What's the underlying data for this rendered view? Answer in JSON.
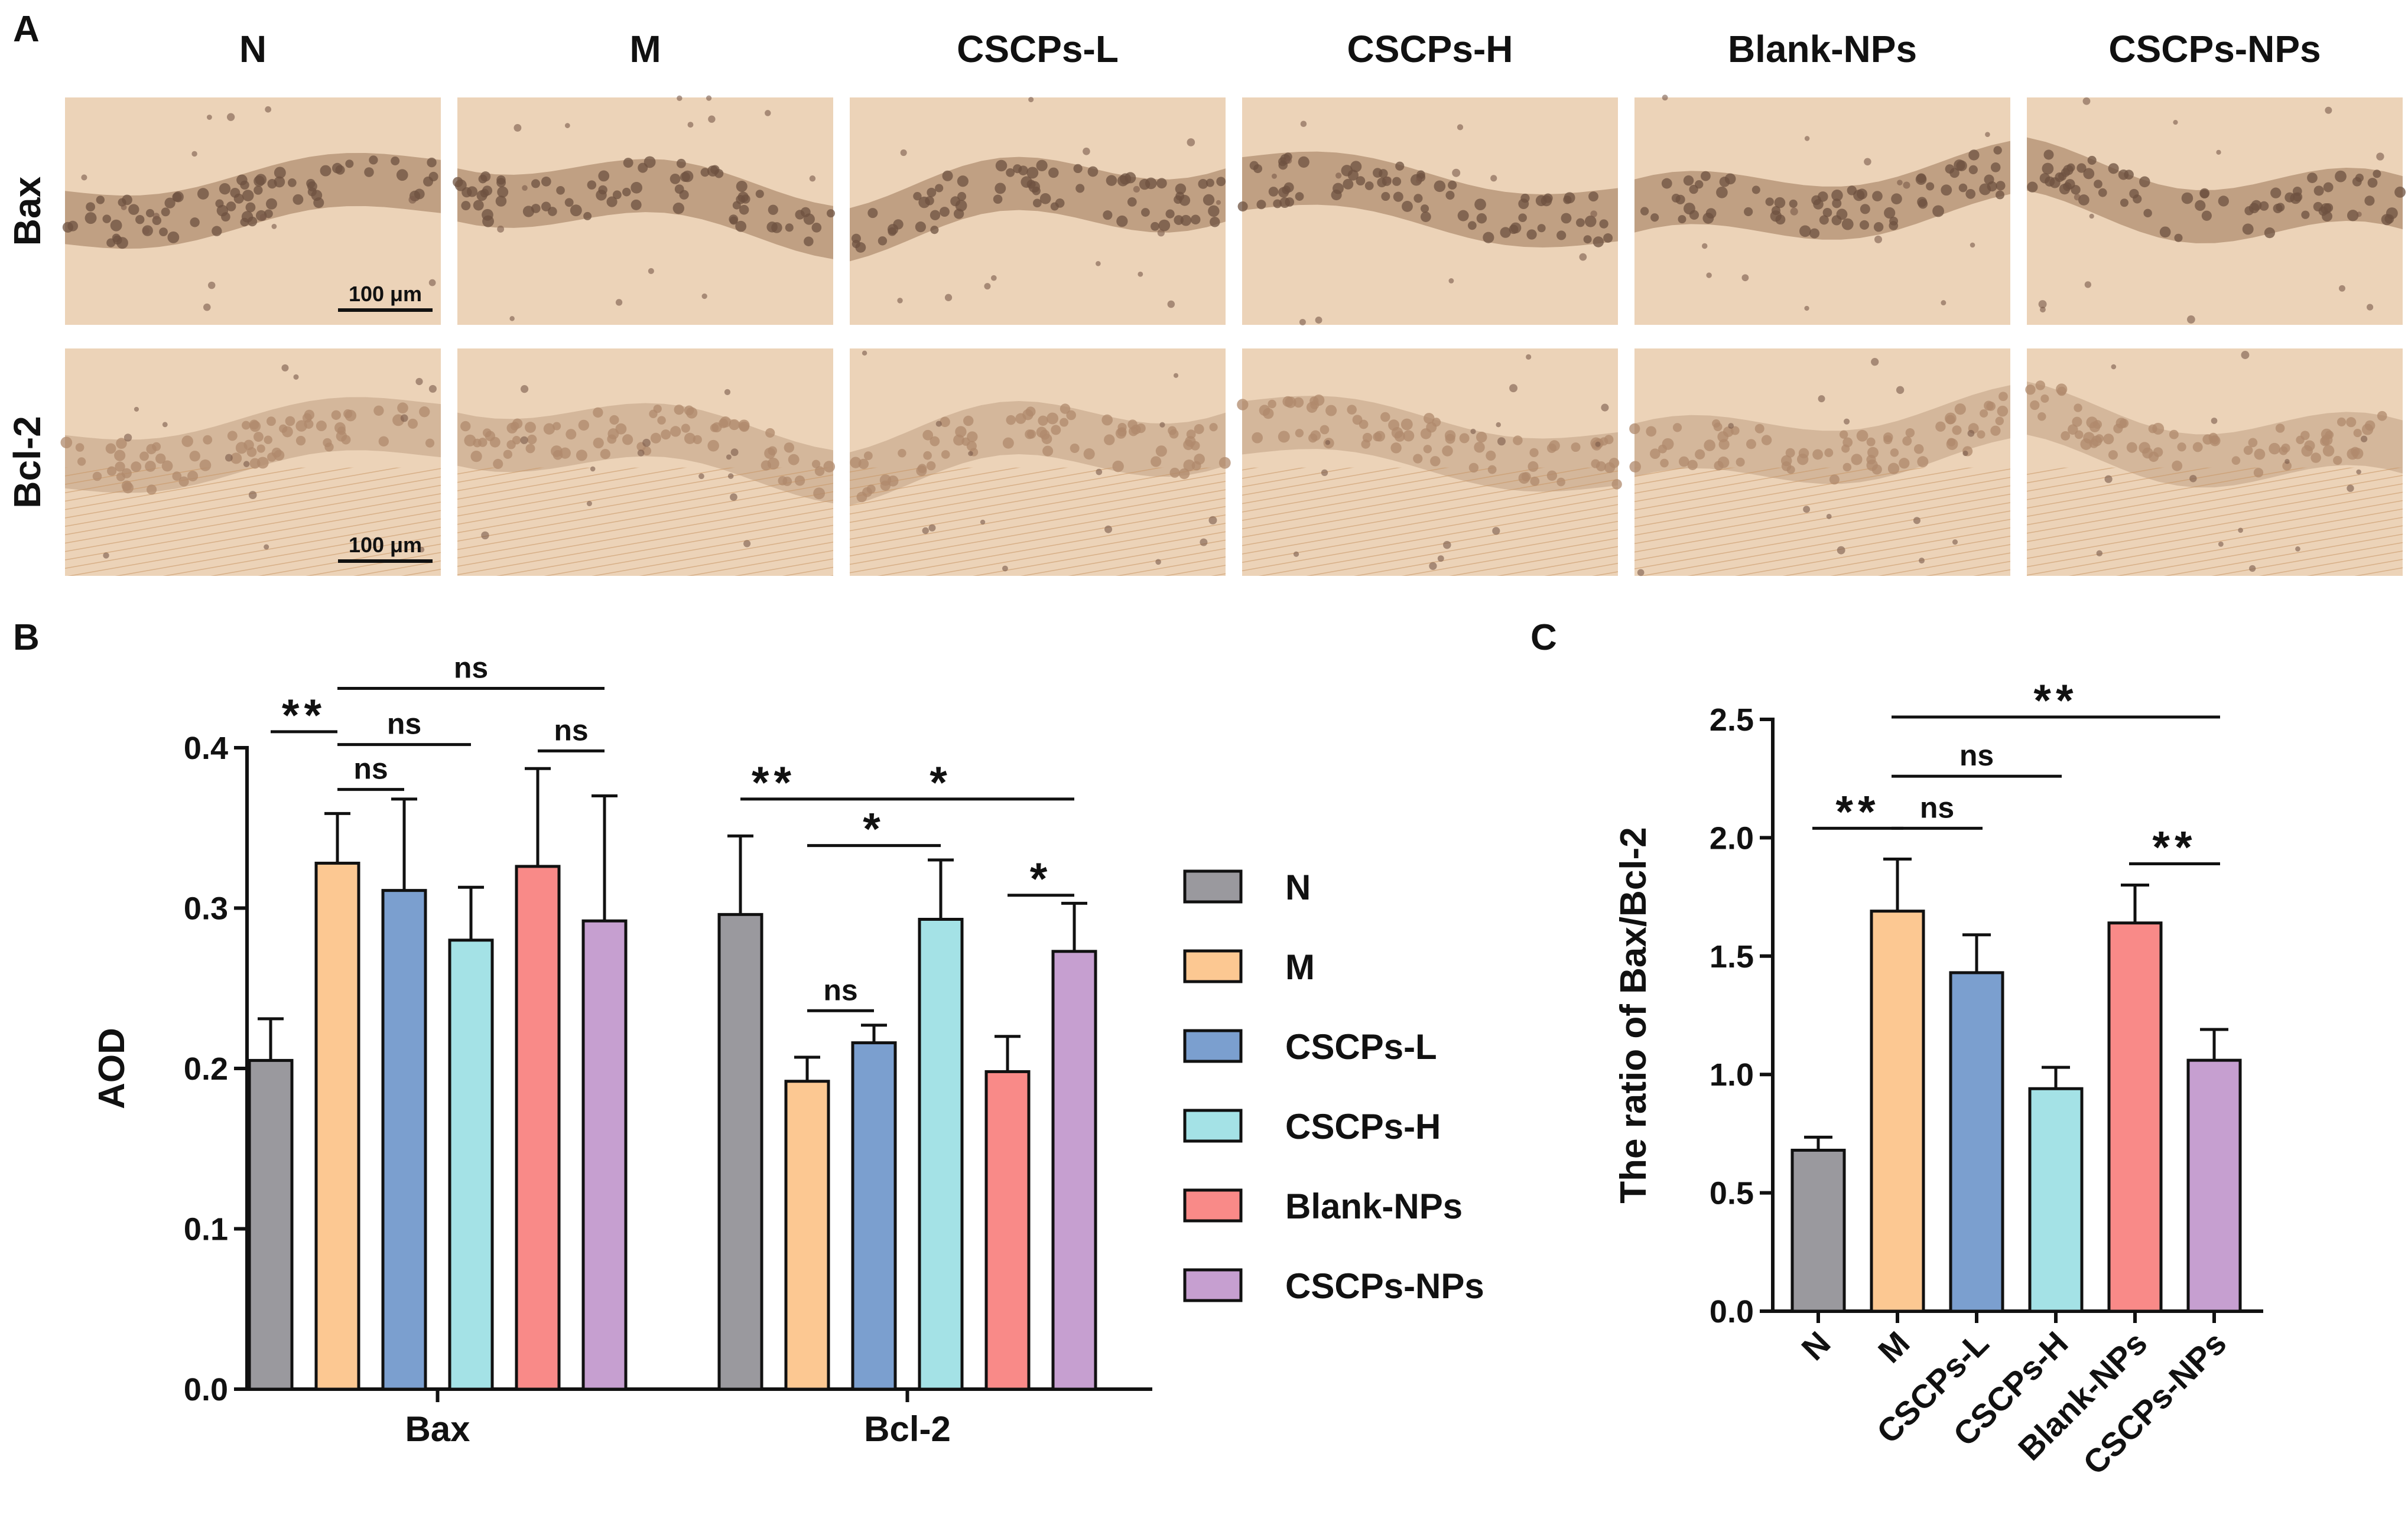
{
  "panel_labels": [
    "A",
    "B",
    "C"
  ],
  "micrographs": {
    "columns": [
      "N",
      "M",
      "CSCPs-L",
      "CSCPs-H",
      "Blank-NPs",
      "CSCPs-NPs"
    ],
    "rows": [
      "Bax",
      "Bcl-2"
    ],
    "scale_bar_label": "100 μm"
  },
  "colors": {
    "N": "#9a999e",
    "M": "#fcc892",
    "CSCPs-L": "#7b9fcf",
    "CSCPs-H": "#a4e2e6",
    "Blank-NPs": "#f98a88",
    "CSCPs-NPs": "#c69fd0",
    "tissue_bg": "#ecd3b8",
    "tissue_band": "#9c7658"
  },
  "chart_data": [
    {
      "type": "bar",
      "panel": "B",
      "categories": [
        "Bax",
        "Bcl-2"
      ],
      "ylabel": "AOD",
      "xlabel": "",
      "ylim": [
        0,
        0.4
      ],
      "yticks": [
        "0.0",
        "0.1",
        "0.2",
        "0.3",
        "0.4"
      ],
      "legend_position": "right",
      "series": [
        {
          "name": "N",
          "values": [
            0.205,
            0.296
          ],
          "errors": [
            0.026,
            0.049
          ]
        },
        {
          "name": "M",
          "values": [
            0.328,
            0.192
          ],
          "errors": [
            0.031,
            0.015
          ]
        },
        {
          "name": "CSCPs-L",
          "values": [
            0.311,
            0.216
          ],
          "errors": [
            0.057,
            0.011
          ]
        },
        {
          "name": "CSCPs-H",
          "values": [
            0.28,
            0.293
          ],
          "errors": [
            0.033,
            0.037
          ]
        },
        {
          "name": "Blank-NPs",
          "values": [
            0.326,
            0.198
          ],
          "errors": [
            0.061,
            0.022
          ]
        },
        {
          "name": "CSCPs-NPs",
          "values": [
            0.292,
            0.273
          ],
          "errors": [
            0.078,
            0.03
          ]
        }
      ],
      "annotations": [
        {
          "label": "**",
          "group": 0,
          "from": 0,
          "to": 1,
          "y": 0.41
        },
        {
          "label": "ns",
          "group": 0,
          "from": 1,
          "to": 2,
          "y": 0.374
        },
        {
          "label": "ns",
          "group": 0,
          "from": 1,
          "to": 3,
          "y": 0.402
        },
        {
          "label": "ns",
          "group": 0,
          "from": 1,
          "to": 5,
          "y": 0.437
        },
        {
          "label": "ns",
          "group": 0,
          "from": 4,
          "to": 5,
          "y": 0.398
        },
        {
          "label": "**",
          "group": 1,
          "from": 0,
          "to": 1,
          "y": 0.368
        },
        {
          "label": "*",
          "group": 1,
          "from": 1,
          "to": 5,
          "y": 0.368
        },
        {
          "label": "*",
          "group": 1,
          "from": 1,
          "to": 3,
          "y": 0.339
        },
        {
          "label": "ns",
          "group": 1,
          "from": 1,
          "to": 2,
          "y": 0.236
        },
        {
          "label": "*",
          "group": 1,
          "from": 4,
          "to": 5,
          "y": 0.308
        }
      ]
    },
    {
      "type": "bar",
      "panel": "C",
      "categories": [
        "N",
        "M",
        "CSCPs-L",
        "CSCPs-H",
        "Blank-NPs",
        "CSCPs-NPs"
      ],
      "values": [
        0.68,
        1.69,
        1.43,
        0.94,
        1.64,
        1.06
      ],
      "errors": [
        0.055,
        0.22,
        0.16,
        0.09,
        0.16,
        0.13
      ],
      "ylabel": "The ratio of Bax/Bcl-2",
      "xlabel": "",
      "ylim": [
        0,
        2.5
      ],
      "yticks": [
        "0.0",
        "0.5",
        "1.0",
        "1.5",
        "2.0",
        "2.5"
      ],
      "annotations": [
        {
          "label": "**",
          "from": 0,
          "to": 1,
          "y": 2.04
        },
        {
          "label": "ns",
          "from": 1,
          "to": 2,
          "y": 2.04
        },
        {
          "label": "ns",
          "from": 1,
          "to": 3,
          "y": 2.26
        },
        {
          "label": "**",
          "from": 1,
          "to": 5,
          "y": 2.51
        },
        {
          "label": "**",
          "from": 4,
          "to": 5,
          "y": 1.89
        }
      ]
    }
  ]
}
